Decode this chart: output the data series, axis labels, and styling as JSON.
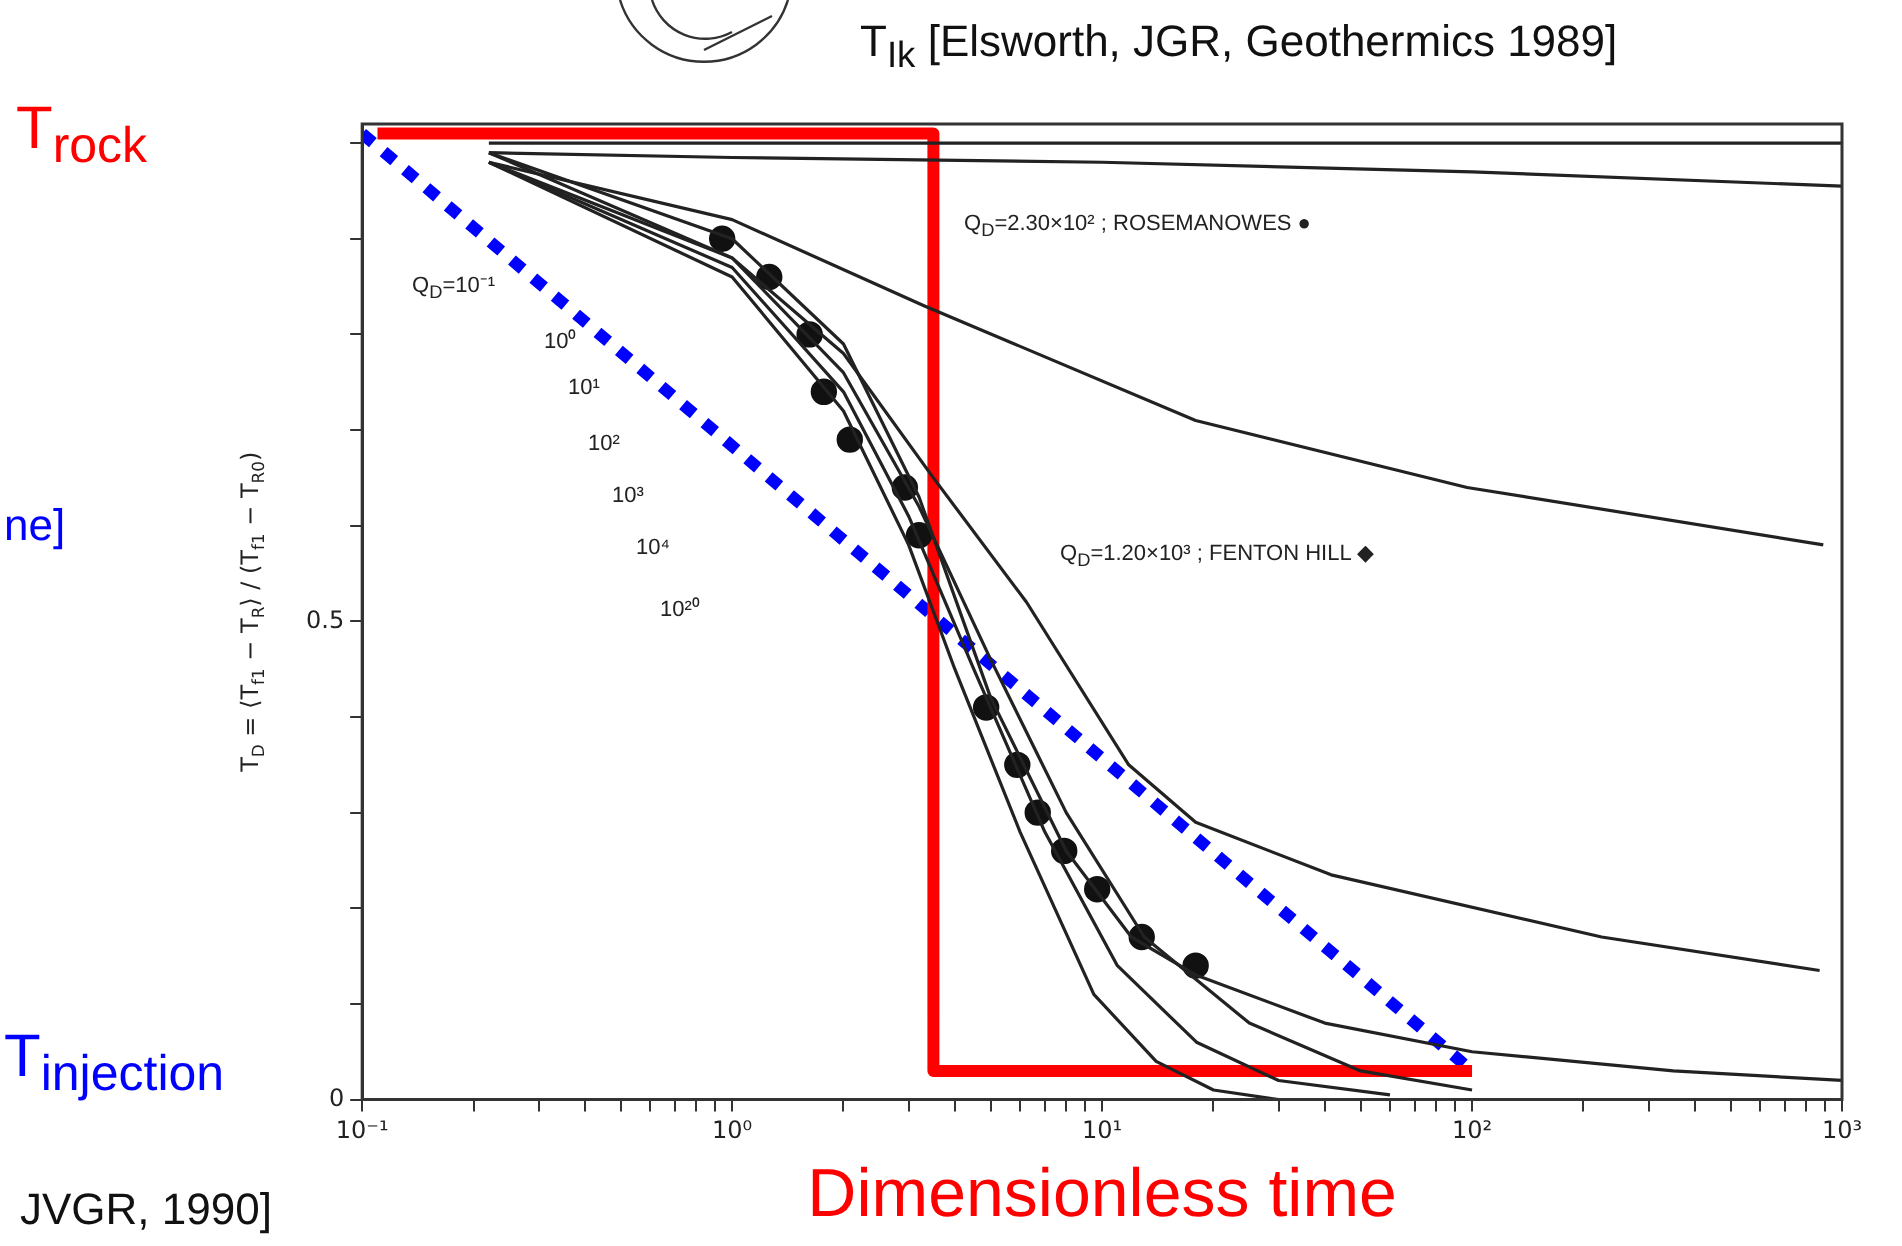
{
  "chart_data": {
    "type": "line",
    "ylabel": "T$_{D}$ = ⟨T$_{f1}$ − T$_{R}$⟩ / (T$_{f1}$ − T$_{R0}$)",
    "xlabel": "Dimensionless time",
    "log": "x",
    "grid": false,
    "legend": false,
    "xlim": [
      0.1,
      1000
    ],
    "ylim": [
      0,
      1.02
    ],
    "xticks": [
      {
        "value": 0.1,
        "label": "10⁻¹"
      },
      {
        "value": 0.2,
        "label": null
      },
      {
        "value": 0.3,
        "label": null
      },
      {
        "value": 0.4,
        "label": null
      },
      {
        "value": 0.5,
        "label": null
      },
      {
        "value": 0.6,
        "label": null
      },
      {
        "value": 0.7,
        "label": null
      },
      {
        "value": 0.8,
        "label": null
      },
      {
        "value": 0.9,
        "label": null
      },
      {
        "value": 1,
        "label": "10⁰"
      },
      {
        "value": 2,
        "label": null
      },
      {
        "value": 3,
        "label": null
      },
      {
        "value": 4,
        "label": null
      },
      {
        "value": 5,
        "label": null
      },
      {
        "value": 6,
        "label": null
      },
      {
        "value": 7,
        "label": null
      },
      {
        "value": 8,
        "label": null
      },
      {
        "value": 9,
        "label": null
      },
      {
        "value": 10,
        "label": "10¹"
      },
      {
        "value": 20,
        "label": null
      },
      {
        "value": 30,
        "label": null
      },
      {
        "value": 40,
        "label": null
      },
      {
        "value": 50,
        "label": null
      },
      {
        "value": 60,
        "label": null
      },
      {
        "value": 70,
        "label": null
      },
      {
        "value": 80,
        "label": null
      },
      {
        "value": 90,
        "label": null
      },
      {
        "value": 100,
        "label": "10²"
      },
      {
        "value": 200,
        "label": null
      },
      {
        "value": 300,
        "label": null
      },
      {
        "value": 400,
        "label": null
      },
      {
        "value": 500,
        "label": null
      },
      {
        "value": 600,
        "label": null
      },
      {
        "value": 700,
        "label": null
      },
      {
        "value": 800,
        "label": null
      },
      {
        "value": 900,
        "label": null
      },
      {
        "value": 1000,
        "label": "10³"
      }
    ],
    "yticks": [
      0,
      {
        "value": 0.1,
        "label": null
      },
      {
        "value": 0.2,
        "label": null
      },
      {
        "value": 0.3,
        "label": null
      },
      {
        "value": 0.4,
        "label": null
      },
      0.5,
      {
        "value": 0.6,
        "label": null
      },
      {
        "value": 0.7,
        "label": null
      },
      {
        "value": 0.8,
        "label": null
      },
      {
        "value": 0.9,
        "label": null
      },
      {
        "value": 1,
        "label": null
      }
    ],
    "series": [
      {
        "color": "#222222",
        "marker": "none",
        "line_style": "solid",
        "x": [
          0.22,
          1,
          10,
          100,
          1000
        ],
        "values": [
          1.0,
          1.0,
          1.0,
          1.0,
          1.0
        ]
      },
      {
        "color": "#222222",
        "marker": "none",
        "line_style": "solid",
        "x": [
          0.22,
          1,
          10,
          100,
          1000
        ],
        "values": [
          0.99,
          0.985,
          0.98,
          0.97,
          0.955
        ]
      },
      {
        "color": "#222222",
        "marker": "none",
        "line_style": "solid",
        "x": [
          0.22,
          1,
          3.3,
          17.9,
          97,
          890
        ],
        "values": [
          0.98,
          0.92,
          0.83,
          0.71,
          0.64,
          0.58
        ]
      },
      {
        "color": "#222222",
        "marker": "none",
        "line_style": "solid",
        "x": [
          0.22,
          1,
          2,
          3.5,
          6.25,
          11.8,
          17.9,
          41.6,
          224,
          870
        ],
        "values": [
          0.98,
          0.88,
          0.78,
          0.65,
          0.52,
          0.35,
          0.29,
          0.235,
          0.17,
          0.135
        ]
      },
      {
        "color": "#222222",
        "marker": "none",
        "line_style": "solid",
        "x": [
          0.22,
          1,
          2,
          3.2,
          5,
          8,
          12,
          18,
          40,
          100,
          350,
          1000
        ],
        "values": [
          0.99,
          0.9,
          0.79,
          0.63,
          0.42,
          0.26,
          0.17,
          0.13,
          0.08,
          0.05,
          0.03,
          0.02
        ]
      },
      {
        "color": "#222222",
        "marker": "none",
        "line_style": "solid",
        "x": [
          0.22,
          1,
          2,
          3.2,
          5,
          8,
          13,
          25,
          50,
          100
        ],
        "values": [
          0.99,
          0.88,
          0.76,
          0.62,
          0.46,
          0.3,
          0.17,
          0.08,
          0.03,
          0.01
        ]
      },
      {
        "color": "#222222",
        "marker": "none",
        "line_style": "solid",
        "x": [
          0.22,
          1,
          2,
          3,
          4.5,
          7,
          11,
          18,
          30,
          60
        ],
        "values": [
          0.98,
          0.87,
          0.74,
          0.61,
          0.45,
          0.28,
          0.14,
          0.06,
          0.02,
          0.005
        ]
      },
      {
        "color": "#222222",
        "marker": "none",
        "line_style": "solid",
        "x": [
          0.22,
          1,
          2,
          3,
          4,
          6,
          9.5,
          14,
          20,
          30
        ],
        "values": [
          0.98,
          0.86,
          0.72,
          0.58,
          0.45,
          0.28,
          0.11,
          0.04,
          0.01,
          0
        ]
      },
      {
        "type": "scatter",
        "color": "#111111",
        "marker": "circle",
        "x": [
          0.94,
          1.26,
          1.62,
          1.77,
          2.08,
          2.93,
          3.2,
          4.86,
          5.9,
          6.7,
          7.9,
          9.7,
          12.8,
          17.9
        ],
        "values": [
          0.9,
          0.86,
          0.8,
          0.74,
          0.69,
          0.64,
          0.59,
          0.41,
          0.35,
          0.3,
          0.26,
          0.22,
          0.17,
          0.14
        ]
      },
      {
        "type": "line",
        "color": "#ff0000",
        "marker": "none",
        "line_style": "solid",
        "x": [
          0.11,
          3.5,
          3.5,
          100
        ],
        "values": [
          1.01,
          1.01,
          0.03,
          0.03
        ]
      },
      {
        "type": "line",
        "color": "#0000ff",
        "marker": "none",
        "line_style": "dotted",
        "x": [
          0.1,
          100
        ],
        "values": [
          1.01,
          0.03
        ]
      }
    ],
    "annotations": [
      "Q$_{D}$=10⁻¹",
      "10⁰",
      "10¹",
      "10²",
      "10³",
      "10⁴",
      "10²⁰",
      "Q$_{D}$=2.30×10² ; ROSEMANOWES ●",
      "Q$_{D}$=1.20×10³ ; FENTON HILL ◆",
      "T$_{Ik}$ [Elsworth, JGR, Geothermics 1989]",
      "T$_{rock}$",
      "ne]",
      "T$_{injection}$",
      "JVGR, 1990]"
    ]
  }
}
